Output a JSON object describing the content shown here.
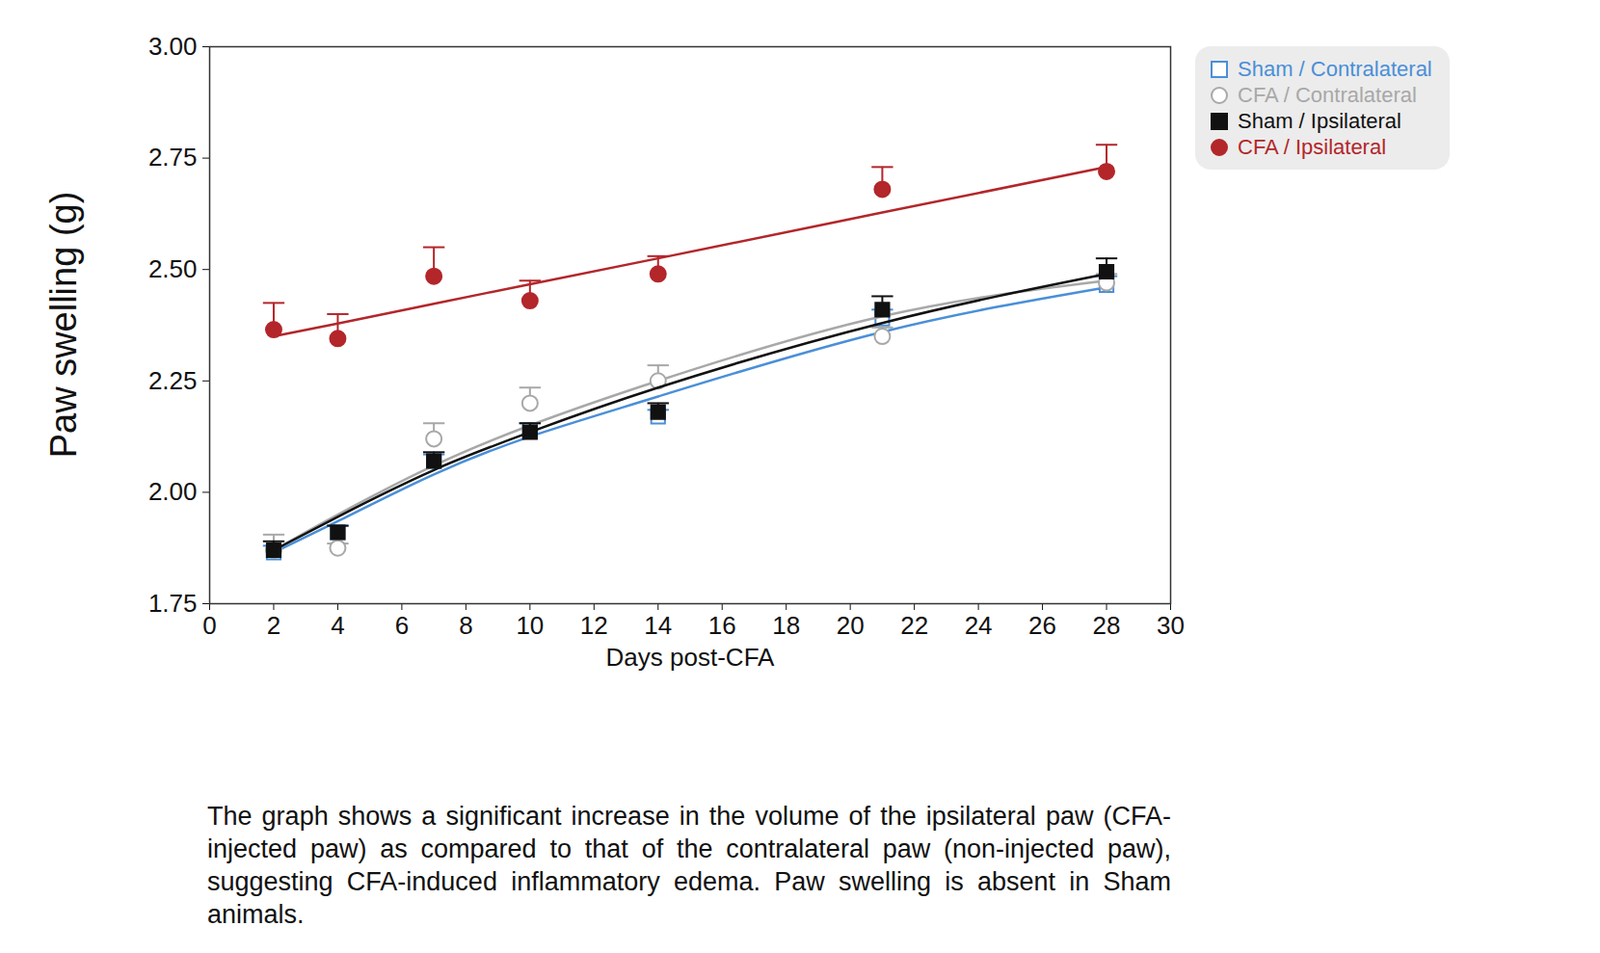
{
  "chart_data": {
    "type": "scatter",
    "x_label": "Days post-CFA",
    "y_label": "Paw swelling (g)",
    "caption": "The graph shows a significant increase in the volume of the ipsilateral paw (CFA-injected paw) as compared to that of the contralateral paw (non-injected paw), suggesting CFA-induced inflammatory edema. Paw swelling is absent in Sham animals.",
    "x": [
      2,
      4,
      7,
      10,
      14,
      21,
      28
    ],
    "xlim": [
      0,
      30
    ],
    "xticks": [
      0,
      2,
      4,
      6,
      8,
      10,
      12,
      14,
      16,
      18,
      20,
      22,
      24,
      26,
      28,
      30
    ],
    "ylim": [
      1.75,
      3
    ],
    "yticks": [
      1.75,
      {
        "value": 2,
        "label": "2.00"
      },
      2.25,
      {
        "value": 2.5,
        "label": "2.50"
      },
      2.75,
      {
        "value": 3,
        "label": "3.00"
      }
    ],
    "grid": false,
    "legend": "right",
    "series": [
      {
        "name": "Sham / Contralateral",
        "color": "#4a8fd8",
        "marker": "square-open",
        "line_style": "solid",
        "values": [
          1.865,
          1.91,
          2.07,
          2.14,
          2.17,
          2.39,
          2.465
        ],
        "errors": [
          0.015,
          0.015,
          0.015,
          0.015,
          0.015,
          0.02,
          0.02
        ],
        "fit": [
          1.865,
          1.935,
          2.04,
          2.125,
          2.215,
          2.36,
          2.46
        ]
      },
      {
        "name": "CFA / Contralateral",
        "color": "#a8a8a8",
        "marker": "circle-open",
        "line_style": "solid",
        "values": [
          1.87,
          1.875,
          2.12,
          2.2,
          2.25,
          2.35,
          2.47
        ],
        "errors": [
          0.035,
          0.01,
          0.035,
          0.035,
          0.035,
          0.02,
          0.02
        ],
        "fit": [
          1.87,
          1.95,
          2.06,
          2.15,
          2.25,
          2.395,
          2.475
        ]
      },
      {
        "name": "Sham / Ipsilateral",
        "color": "#111111",
        "marker": "square",
        "line_style": "solid",
        "values": [
          1.87,
          1.91,
          2.07,
          2.135,
          2.18,
          2.41,
          2.495
        ],
        "errors": [
          0.02,
          0.015,
          0.02,
          0.02,
          0.02,
          0.03,
          0.03
        ],
        "fit": [
          1.87,
          1.945,
          2.05,
          2.135,
          2.235,
          2.38,
          2.49
        ]
      },
      {
        "name": "CFA / Ipsilateral",
        "color": "#b3262a",
        "marker": "circle",
        "line_style": "solid",
        "values": [
          2.365,
          2.345,
          2.485,
          2.43,
          2.49,
          2.68,
          2.72
        ],
        "errors": [
          0.06,
          0.055,
          0.065,
          0.045,
          0.04,
          0.05,
          0.06
        ],
        "fit": [
          2.35,
          2.379,
          2.423,
          2.467,
          2.525,
          2.628,
          2.73
        ]
      }
    ]
  }
}
